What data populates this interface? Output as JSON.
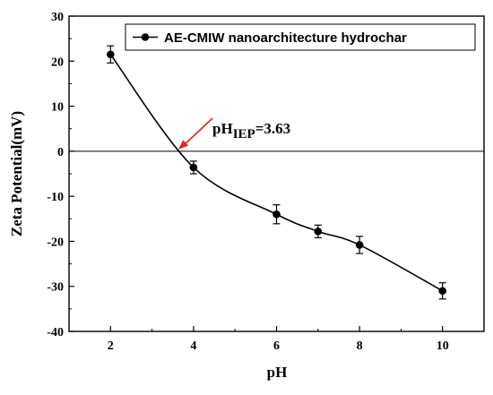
{
  "chart_data": {
    "type": "line",
    "xlabel": "pH",
    "ylabel": "Zeta Potential(mV)",
    "xlim": [
      1,
      11
    ],
    "ylim": [
      -40,
      30
    ],
    "xticks": [
      2,
      4,
      6,
      8,
      10
    ],
    "yticks": [
      -40,
      -30,
      -20,
      -10,
      0,
      10,
      20,
      30
    ],
    "reference_line_y": 0,
    "series": [
      {
        "name": "AE-CMIW nanoarchitecture hydrochar",
        "x": [
          2,
          4,
          6,
          7,
          8,
          10
        ],
        "y": [
          21.5,
          -3.6,
          -14.0,
          -17.8,
          -20.8,
          -31.0
        ],
        "error": [
          1.9,
          1.4,
          2.1,
          1.4,
          1.9,
          1.8
        ]
      }
    ],
    "legend_position": "top-right",
    "annotation": {
      "prefix": "pH",
      "subscript": "IEP",
      "suffix": "=3.63",
      "x": 3.63,
      "y": 0
    }
  }
}
